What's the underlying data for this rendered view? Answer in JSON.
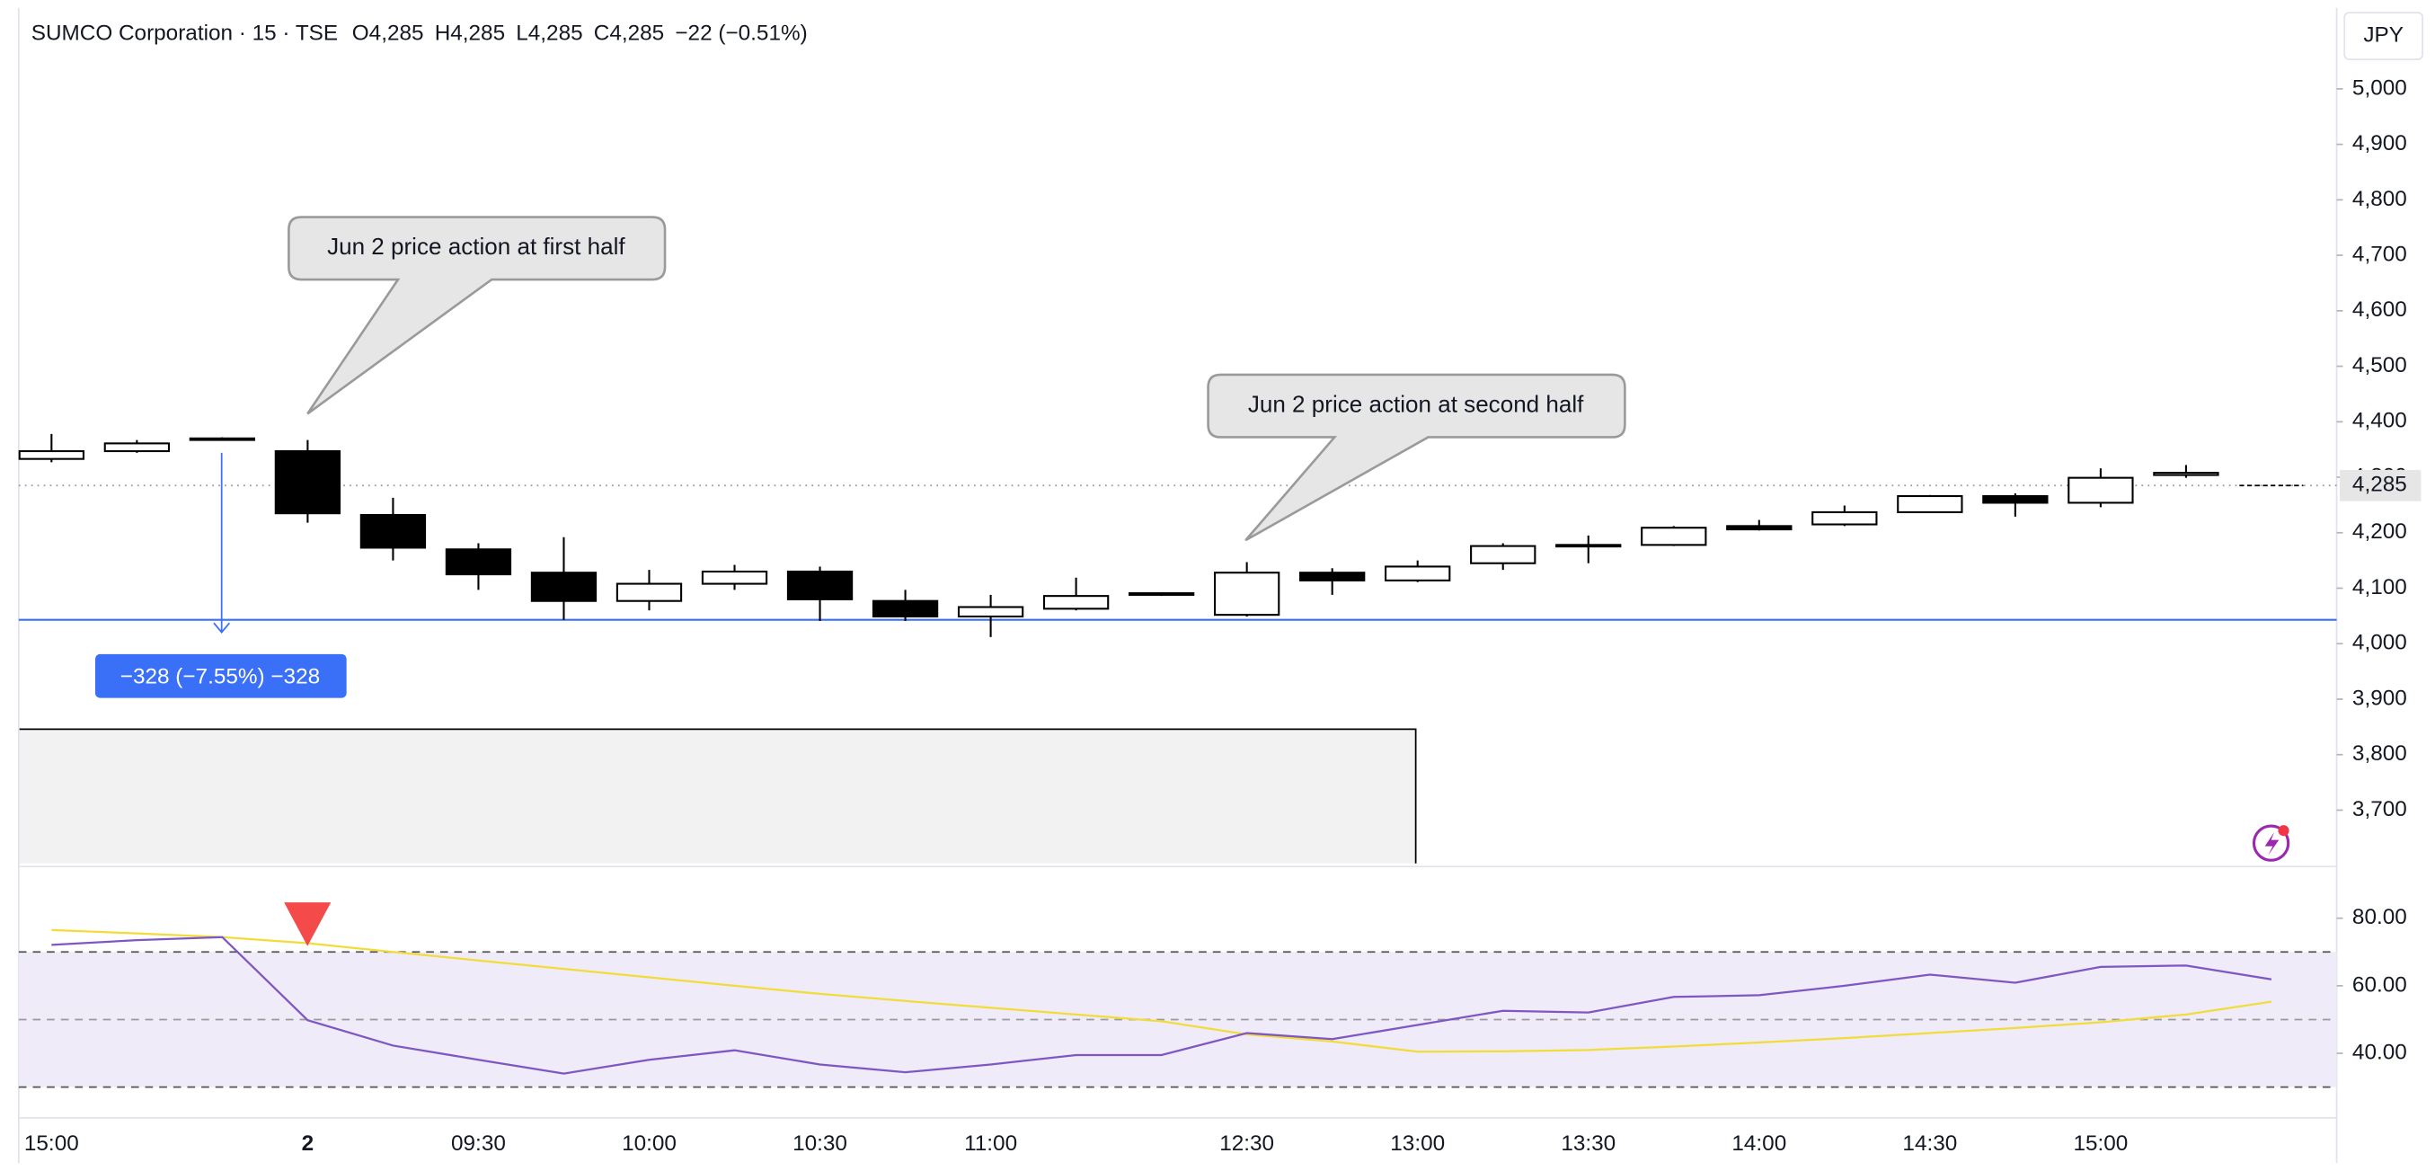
{
  "chart_data": [
    {
      "type": "candlestick",
      "header": [
        "SUMCO Corporation · 15 · TSE",
        "O4,285",
        "H4,285",
        "L4,285",
        "C4,285",
        "−22 (−0.51%)"
      ],
      "currency": "JPY",
      "categories": [
        "15:00",
        null,
        null,
        "2",
        null,
        "09:30",
        null,
        "10:00",
        null,
        "10:30",
        null,
        "11:00",
        null,
        null,
        "12:30",
        null,
        "13:00",
        null,
        "13:30",
        null,
        "14:00",
        null,
        "14:30",
        null,
        "15:00",
        null,
        null
      ],
      "open": [
        4333,
        4347,
        4370,
        4347,
        4232,
        4170,
        4128,
        4077,
        4108,
        4130,
        4077,
        4049,
        4063,
        4091,
        4052,
        4128,
        4114,
        4145,
        4176,
        4178,
        4212,
        4215,
        4237,
        4266,
        4254,
        4304,
        4285
      ],
      "high": [
        4378,
        4367,
        4372,
        4367,
        4263,
        4181,
        4192,
        4133,
        4142,
        4139,
        4097,
        4088,
        4119,
        4091,
        4147,
        4136,
        4150,
        4181,
        4195,
        4212,
        4223,
        4249,
        4268,
        4271,
        4316,
        4322,
        4285
      ],
      "low": [
        4327,
        4344,
        4368,
        4218,
        4150,
        4097,
        4043,
        4060,
        4097,
        4041,
        4041,
        4012,
        4060,
        4086,
        4049,
        4088,
        4111,
        4133,
        4145,
        4176,
        4204,
        4212,
        4237,
        4229,
        4246,
        4299,
        4285
      ],
      "close": [
        4347,
        4361,
        4370,
        4235,
        4173,
        4125,
        4077,
        4108,
        4130,
        4080,
        4049,
        4066,
        4086,
        4088,
        4128,
        4114,
        4139,
        4176,
        4178,
        4209,
        4206,
        4237,
        4266,
        4254,
        4299,
        4308,
        4285
      ],
      "up_color": "#ffffff",
      "down_color": "#000000",
      "wick_color": "#000000",
      "ylim": [
        3604,
        5146
      ],
      "yticks": [
        {
          "value": 3700,
          "label": "3,700"
        },
        {
          "value": 3800,
          "label": "3,800"
        },
        {
          "value": 3900,
          "label": "3,900"
        },
        {
          "value": 4000,
          "label": "4,000"
        },
        {
          "value": 4100,
          "label": "4,100"
        },
        {
          "value": 4200,
          "label": "4,200"
        },
        {
          "value": 4300,
          "label": "4,300"
        },
        {
          "value": 4400,
          "label": "4,400"
        },
        {
          "value": 4500,
          "label": "4,500"
        },
        {
          "value": 4600,
          "label": "4,600"
        },
        {
          "value": 4700,
          "label": "4,700"
        },
        {
          "value": 4800,
          "label": "4,800"
        },
        {
          "value": 4900,
          "label": "4,900"
        },
        {
          "value": 5000,
          "label": "5,000"
        }
      ],
      "last_price": {
        "value": 4285,
        "label": "4,285"
      },
      "horizontal_line": 4043,
      "annotations": [
        "Jun 2 price action at first half",
        "Jun 2 price action at second half"
      ],
      "measure_label": "−328 (−7.55%) −328"
    },
    {
      "type": "line",
      "series": [
        {
          "name": "RSI",
          "color": "#7e57c2",
          "values": [
            72.1,
            73.5,
            74.4,
            49.8,
            42.3,
            38.1,
            34.0,
            38.1,
            40.9,
            36.7,
            34.4,
            36.7,
            39.5,
            39.5,
            46.0,
            44.2,
            48.4,
            52.6,
            52.1,
            56.7,
            57.2,
            60.0,
            63.3,
            60.9,
            65.6,
            66.0,
            61.9
          ]
        },
        {
          "name": "RSI MA",
          "color": "#f2dc3a",
          "values": [
            76.5,
            75.5,
            74.4,
            72.6,
            70.0,
            67.5,
            65.0,
            62.5,
            60.0,
            57.6,
            55.5,
            53.5,
            51.5,
            49.5,
            45.6,
            43.5,
            40.5,
            40.6,
            41.0,
            42.0,
            43.2,
            44.5,
            46.0,
            47.5,
            49.2,
            51.5,
            55.3
          ]
        }
      ],
      "levels": [
        30,
        50,
        70
      ],
      "ylim": [
        20.9,
        95.3
      ],
      "yticks": [
        {
          "value": 40,
          "label": "40.00"
        },
        {
          "value": 60,
          "label": "60.00"
        },
        {
          "value": 80,
          "label": "80.00"
        }
      ]
    }
  ]
}
